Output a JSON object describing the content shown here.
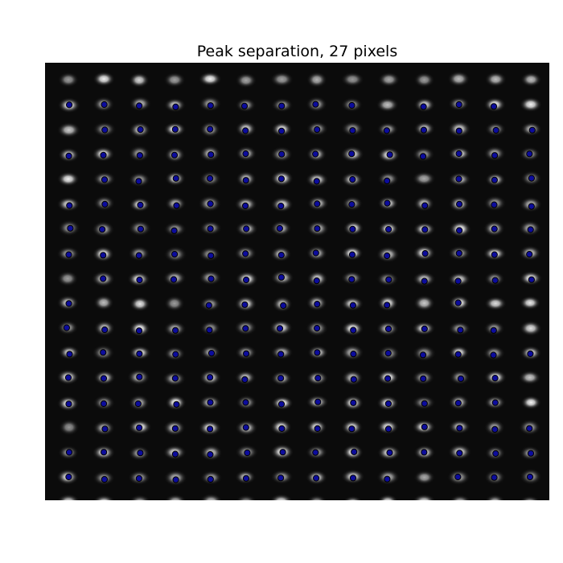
{
  "figure": {
    "title": "Peak separation, 27 pixels"
  },
  "lattice": {
    "columns": 14,
    "rows": 18,
    "peak_spacing_px": 27
  },
  "colors": {
    "background": "#0b0b0b",
    "spot_peak": "#ffffff",
    "marker_fill": "#0c0c9c",
    "marker_edge": "#000000"
  }
}
